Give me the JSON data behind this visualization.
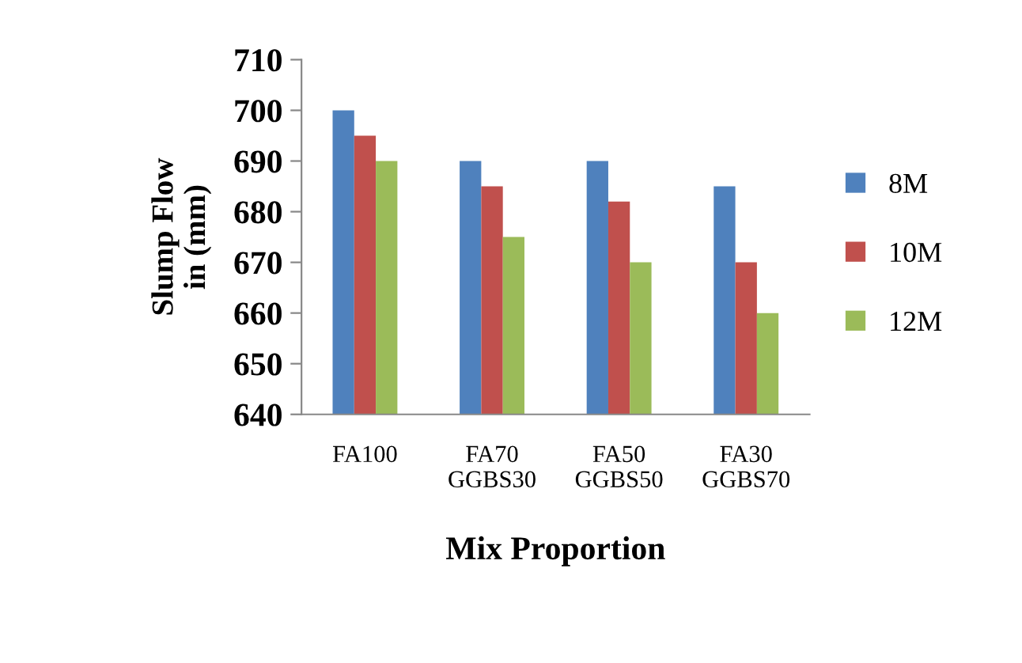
{
  "chart_data": {
    "type": "bar",
    "ylabel": "Slump Flow\nin (mm)",
    "xlabel": "Mix Proportion",
    "categories": [
      "FA100",
      "FA70\nGGBS30",
      "FA50\nGGBS50",
      "FA30\nGGBS70"
    ],
    "series": [
      {
        "name": "8M",
        "color": "#4f81bd",
        "values": [
          700,
          690,
          690,
          685
        ]
      },
      {
        "name": "10M",
        "color": "#c0504d",
        "values": [
          695,
          685,
          682,
          670
        ]
      },
      {
        "name": "12M",
        "color": "#9bbb59",
        "values": [
          690,
          675,
          670,
          660
        ]
      }
    ],
    "ylim": [
      640,
      710
    ],
    "yticks": [
      640,
      650,
      660,
      670,
      680,
      690,
      700,
      710
    ],
    "grid": false,
    "legend": "right"
  }
}
